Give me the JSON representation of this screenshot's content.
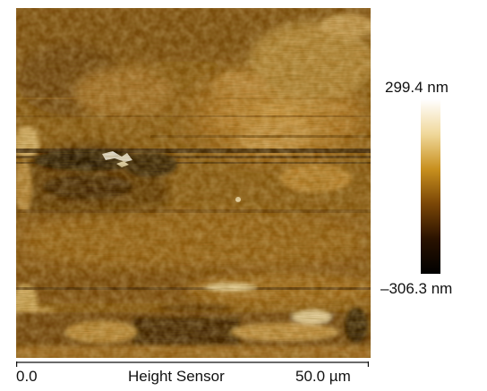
{
  "image": {
    "channel_label": "Height Sensor",
    "scale": {
      "start_label": "0.0",
      "end_label": "50.0 µm"
    },
    "colorbar": {
      "max_label": "299.4 nm",
      "min_label": "–306.3 nm",
      "gradient": [
        "#ffffff",
        "#f0d89a",
        "#c8901e",
        "#7a4606",
        "#2a1200",
        "#000000"
      ]
    }
  }
}
